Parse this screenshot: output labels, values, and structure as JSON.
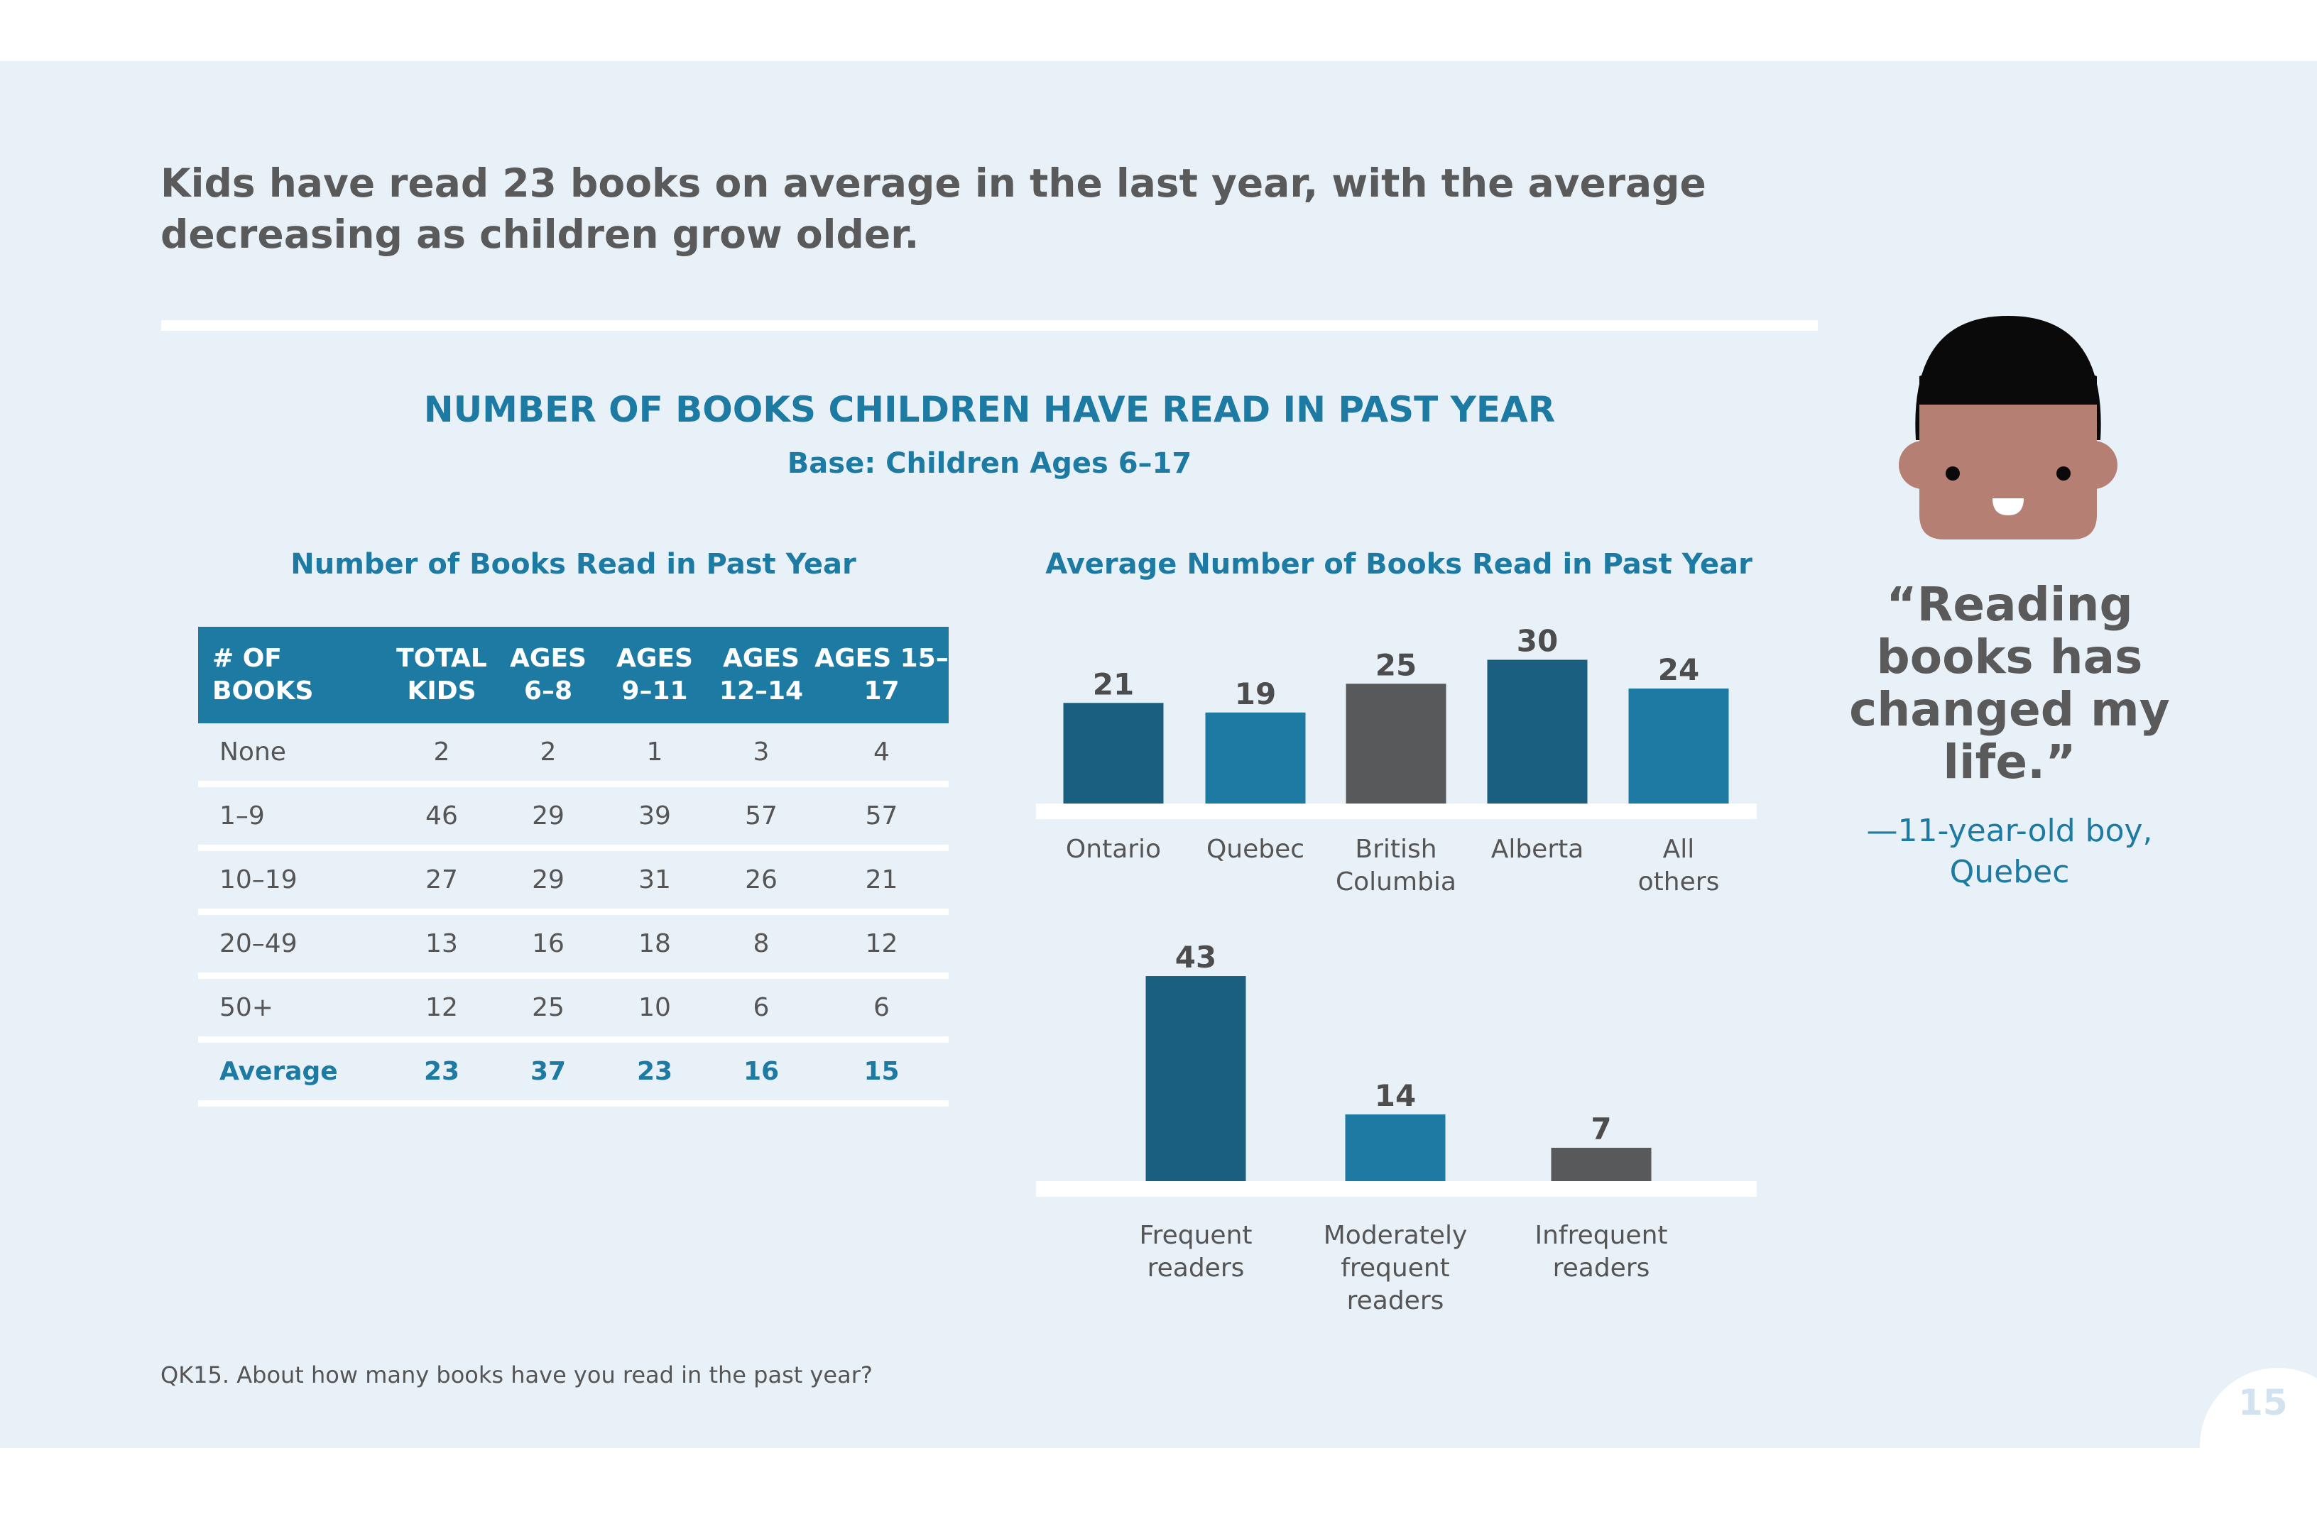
{
  "headline": "Kids have read 23 books on average in the last year, with the average decreasing as children grow older.",
  "main_title": "NUMBER OF BOOKS CHILDREN HAVE READ IN PAST YEAR",
  "main_subtitle": "Base: Children Ages 6–17",
  "table": {
    "title": "Number of Books Read in Past Year",
    "header_color": "#1d7aa3",
    "columns": [
      "# OF BOOKS",
      "TOTAL KIDS",
      "AGES 6–8",
      "AGES 9–11",
      "AGES 12–14",
      "AGES 15–17"
    ],
    "rows": [
      [
        "None",
        "2",
        "2",
        "1",
        "3",
        "4"
      ],
      [
        "1–9",
        "46",
        "29",
        "39",
        "57",
        "57"
      ],
      [
        "10–19",
        "27",
        "29",
        "31",
        "26",
        "21"
      ],
      [
        "20–49",
        "13",
        "16",
        "18",
        "8",
        "12"
      ],
      [
        "50+",
        "12",
        "25",
        "10",
        "6",
        "6"
      ],
      [
        "Average",
        "23",
        "37",
        "23",
        "16",
        "15"
      ]
    ]
  },
  "chart_data": [
    {
      "type": "bar",
      "title": "Average Number of Books Read in Past Year",
      "categories": [
        "Ontario",
        "Quebec",
        "British Columbia",
        "Alberta",
        "All others"
      ],
      "values": [
        21,
        19,
        25,
        30,
        24
      ],
      "colors": [
        "#1b5f80",
        "#1d7aa3",
        "#58595b",
        "#1b5f80",
        "#1d7aa3"
      ],
      "data_labels": true,
      "grid": false
    },
    {
      "type": "bar",
      "categories": [
        "Frequent readers",
        "Moderately frequent readers",
        "Infrequent readers"
      ],
      "values": [
        43,
        14,
        7
      ],
      "colors": [
        "#1b5f80",
        "#1d7aa3",
        "#58595b"
      ],
      "data_labels": true,
      "grid": false
    }
  ],
  "quote": {
    "text": "“Reading books has changed my life.”",
    "attribution": "—11-year-old boy, Quebec"
  },
  "footnote": "QK15. About how many books have you read in the past year?",
  "page_number": "15",
  "colors": {
    "background": "#e9f1f8",
    "accent": "#1d7aa3",
    "dark_blue": "#1b5f80",
    "gray": "#58595b",
    "text": "#5a5a5a"
  }
}
